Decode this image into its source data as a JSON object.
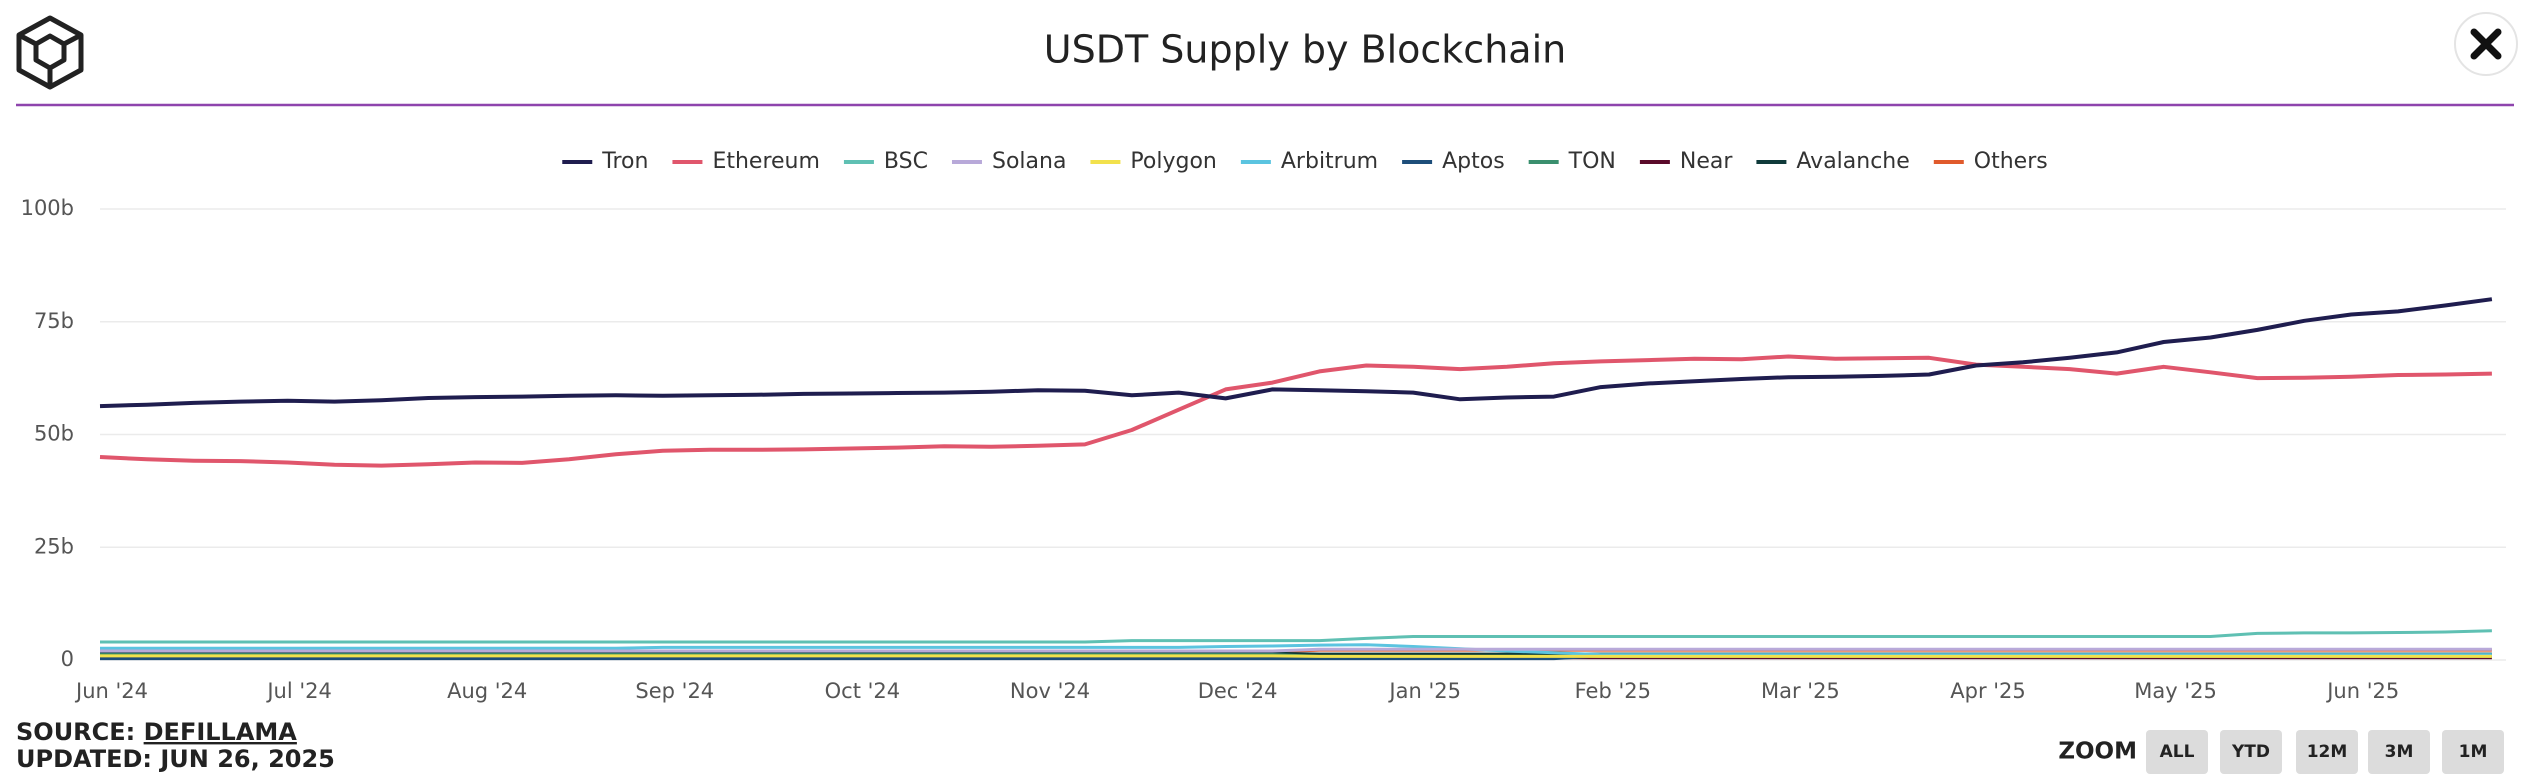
{
  "chart_data": {
    "type": "line",
    "title": "USDT Supply by Blockchain",
    "categories": [
      "Jun '24",
      null,
      null,
      null,
      "Jul '24",
      null,
      null,
      null,
      "Aug '24",
      null,
      null,
      null,
      "Sep '24",
      null,
      null,
      null,
      "Oct '24",
      null,
      null,
      null,
      "Nov '24",
      null,
      null,
      null,
      "Dec '24",
      null,
      null,
      null,
      "Jan '25",
      null,
      null,
      null,
      "Feb '25",
      null,
      null,
      null,
      "Mar '25",
      null,
      null,
      null,
      "Apr '25",
      null,
      null,
      null,
      "May '25",
      null,
      null,
      null,
      "Jun '25",
      null,
      null,
      null
    ],
    "series": [
      {
        "name": "Tron",
        "color": "#1f1d4f",
        "values": [
          56.3,
          56.6,
          57,
          57.3,
          57.5,
          57.3,
          57.6,
          58.1,
          58.3,
          58.4,
          58.6,
          58.7,
          58.6,
          58.7,
          58.8,
          59,
          59.1,
          59.2,
          59.3,
          59.5,
          59.8,
          59.7,
          58.7,
          59.3,
          58,
          60,
          59.8,
          59.6,
          59.3,
          57.8,
          58.2,
          58.4,
          60.5,
          61.3,
          61.8,
          62.3,
          62.7,
          62.8,
          63,
          63.3,
          65.3,
          66,
          67,
          68.2,
          70.5,
          71.5,
          73.2,
          75.2,
          76.6,
          77.3,
          78.6,
          80
        ]
      },
      {
        "name": "Ethereum",
        "color": "#e0566c",
        "values": [
          45,
          44.5,
          44.2,
          44.1,
          43.8,
          43.3,
          43.1,
          43.4,
          43.8,
          43.7,
          44.5,
          45.6,
          46.4,
          46.6,
          46.6,
          46.7,
          46.9,
          47.1,
          47.4,
          47.3,
          47.5,
          47.8,
          51,
          55.5,
          60,
          61.5,
          64,
          65.3,
          65,
          64.5,
          65,
          65.8,
          66.2,
          66.5,
          66.8,
          66.7,
          67.3,
          66.8,
          66.9,
          67,
          65.5,
          65,
          64.5,
          63.5,
          65,
          63.8,
          62.5,
          62.6,
          62.8,
          63.2,
          63.3,
          63.5
        ]
      },
      {
        "name": "BSC",
        "color": "#5fc0b3",
        "values": [
          4,
          4,
          4,
          4,
          4,
          4,
          4,
          4,
          4,
          4,
          4,
          4,
          4,
          4,
          4,
          4,
          4,
          4,
          4,
          4,
          4,
          4,
          4.3,
          4.3,
          4.3,
          4.3,
          4.3,
          4.8,
          5.2,
          5.2,
          5.2,
          5.2,
          5.2,
          5.2,
          5.2,
          5.2,
          5.2,
          5.2,
          5.2,
          5.2,
          5.2,
          5.2,
          5.2,
          5.2,
          5.2,
          5.2,
          5.9,
          6,
          6,
          6.1,
          6.2,
          6.5
        ]
      },
      {
        "name": "Solana",
        "color": "#b8a9d9",
        "values": [
          2,
          2,
          2,
          2,
          2,
          2,
          2,
          2,
          2,
          2,
          2,
          2,
          2,
          2,
          2,
          2,
          2,
          2,
          2,
          2,
          2,
          2,
          2,
          2,
          2,
          2,
          2.4,
          2.4,
          2.4,
          2.4,
          2.4,
          2.4,
          2.4,
          2.4,
          2.4,
          2.4,
          2.4,
          2.4,
          2.4,
          2.4,
          2.4,
          2.4,
          2.4,
          2.4,
          2.4,
          2.4,
          2.4,
          2.4,
          2.4,
          2.4,
          2.4,
          2.4
        ]
      },
      {
        "name": "Polygon",
        "color": "#f2e14c",
        "values": [
          0.9,
          0.9,
          0.9,
          0.9,
          0.9,
          0.9,
          0.9,
          0.9,
          0.9,
          0.9,
          0.9,
          0.9,
          0.9,
          0.9,
          0.9,
          0.9,
          0.9,
          0.9,
          0.9,
          0.9,
          0.9,
          0.9,
          0.9,
          0.9,
          0.9,
          0.9,
          0.8,
          0.8,
          0.8,
          0.8,
          0.8,
          0.8,
          0.8,
          0.8,
          0.8,
          0.8,
          0.8,
          0.8,
          0.8,
          0.8,
          0.8,
          0.8,
          0.8,
          0.8,
          0.8,
          0.8,
          0.8,
          0.8,
          0.8,
          0.8,
          0.8,
          0.8
        ]
      },
      {
        "name": "Arbitrum",
        "color": "#5bc4e0",
        "values": [
          2.6,
          2.6,
          2.6,
          2.6,
          2.6,
          2.6,
          2.6,
          2.6,
          2.6,
          2.6,
          2.6,
          2.6,
          2.8,
          2.8,
          2.8,
          2.8,
          2.8,
          2.8,
          2.8,
          2.8,
          2.8,
          2.8,
          2.8,
          2.8,
          3,
          3.1,
          3.3,
          3.4,
          3,
          2.5,
          2,
          1.6,
          1.2,
          1.2,
          1.2,
          1.2,
          1.2,
          1.2,
          1.2,
          1.2,
          1.2,
          1.2,
          1.2,
          1.2,
          1.2,
          1.2,
          1.2,
          1.2,
          1.2,
          1.2,
          1.2,
          1.2
        ]
      },
      {
        "name": "Aptos",
        "color": "#1d4e7a",
        "values": [
          0.3,
          0.3,
          0.3,
          0.3,
          0.3,
          0.3,
          0.3,
          0.3,
          0.3,
          0.3,
          0.3,
          0.3,
          0.3,
          0.3,
          0.3,
          0.3,
          0.3,
          0.3,
          0.3,
          0.3,
          0.3,
          0.3,
          0.3,
          0.3,
          0.3,
          0.3,
          0.3,
          0.3,
          0.3,
          0.3,
          0.3,
          0.3,
          0.9,
          0.9,
          0.9,
          0.9,
          0.9,
          0.9,
          0.9,
          0.9,
          0.9,
          0.9,
          0.9,
          0.9,
          0.9,
          0.9,
          0.9,
          0.9,
          0.9,
          0.9,
          0.9,
          0.9
        ]
      },
      {
        "name": "TON",
        "color": "#3a8f6e",
        "values": [
          1.2,
          1.2,
          1.2,
          1.2,
          1.2,
          1.2,
          1.2,
          1.2,
          1.2,
          1.2,
          1.2,
          1.2,
          1.2,
          1.2,
          1.2,
          1.2,
          1.2,
          1.2,
          1.2,
          1.2,
          1.2,
          1.2,
          1.2,
          1.2,
          1.2,
          1.2,
          0.8,
          0.8,
          0.8,
          0.8,
          0.8,
          0.8,
          0.8,
          0.8,
          0.8,
          0.8,
          0.8,
          0.8,
          0.8,
          0.8,
          0.8,
          0.8,
          0.8,
          0.8,
          0.8,
          0.8,
          0.8,
          0.8,
          0.8,
          0.8,
          0.8,
          0.8
        ]
      },
      {
        "name": "Near",
        "color": "#5a0a2a",
        "values": [
          0.4,
          0.4,
          0.4,
          0.4,
          0.4,
          0.4,
          0.4,
          0.4,
          0.4,
          0.4,
          0.4,
          0.4,
          0.4,
          0.4,
          0.4,
          0.4,
          0.4,
          0.4,
          0.4,
          0.4,
          0.4,
          0.4,
          0.4,
          0.4,
          0.4,
          0.4,
          0.5,
          0.5,
          0.5,
          0.5,
          0.5,
          0.5,
          0.5,
          0.5,
          0.5,
          0.5,
          0.5,
          0.5,
          0.5,
          0.5,
          0.5,
          0.5,
          0.5,
          0.5,
          0.5,
          0.5,
          0.5,
          0.5,
          0.5,
          0.5,
          0.5,
          0.5
        ]
      },
      {
        "name": "Avalanche",
        "color": "#0f3a3a",
        "values": [
          1.5,
          1.5,
          1.5,
          1.5,
          1.5,
          1.5,
          1.5,
          1.5,
          1.5,
          1.5,
          1.5,
          1.5,
          1.5,
          1.5,
          1.5,
          1.5,
          1.5,
          1.5,
          1.5,
          1.5,
          1.5,
          1.5,
          1.5,
          1.5,
          1.5,
          1.5,
          1.3,
          1.3,
          1.3,
          1.3,
          1.3,
          1.3,
          1.3,
          1.3,
          1.3,
          1.3,
          1.3,
          1.3,
          1.3,
          1.3,
          1.3,
          1.3,
          1.3,
          1.3,
          1.3,
          1.3,
          1.3,
          1.3,
          1.3,
          1.3,
          1.3,
          1.3
        ]
      },
      {
        "name": "Others",
        "color": "#e05a2c",
        "values": [
          1.8,
          1.8,
          1.8,
          1.8,
          1.8,
          1.8,
          1.8,
          1.8,
          1.8,
          1.8,
          1.8,
          1.8,
          1.8,
          1.8,
          1.8,
          1.8,
          1.8,
          1.8,
          1.8,
          1.8,
          1.8,
          1.8,
          1.8,
          1.8,
          1.8,
          1.8,
          2.2,
          2.2,
          2.2,
          2.2,
          2.2,
          2.2,
          2.2,
          2.2,
          2.2,
          2.2,
          2.2,
          2.2,
          2.2,
          2.2,
          2.2,
          2.2,
          2.2,
          2.2,
          2.2,
          2.2,
          2.2,
          2.2,
          2.2,
          2.2,
          2.2,
          2.2
        ]
      }
    ],
    "ylim": [
      0,
      100
    ],
    "yticks": [
      0,
      {
        "value": 25,
        "label": "25b"
      },
      {
        "value": 50,
        "label": "50b"
      },
      {
        "value": 75,
        "label": "75b"
      },
      {
        "value": 100,
        "label": "100b"
      }
    ],
    "grid": true,
    "legend": "top"
  },
  "footer": {
    "source_label": "SOURCE:",
    "source_name": "DEFILLAMA",
    "updated": "UPDATED: JUN 26, 2025"
  },
  "zoom": {
    "label": "ZOOM",
    "buttons": [
      "ALL",
      "YTD",
      "12M",
      "3M",
      "1M"
    ]
  }
}
